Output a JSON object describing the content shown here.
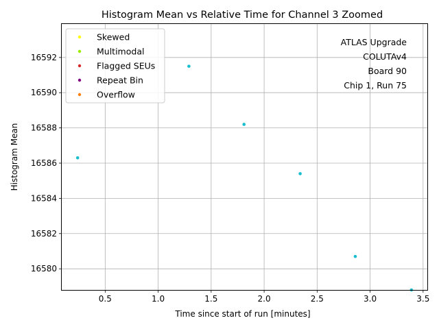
{
  "chart_data": {
    "type": "scatter",
    "title": "Histogram Mean vs Relative Time for Channel 3 Zoomed",
    "xlabel": "Time since start of run [minutes]",
    "ylabel": "Histogram Mean",
    "xlim": [
      0.09,
      3.54
    ],
    "ylim": [
      16578.8,
      16593.9
    ],
    "xticks": [
      0.5,
      1.0,
      1.5,
      2.0,
      2.5,
      3.0,
      3.5
    ],
    "xtick_labels": [
      "0.5",
      "1.0",
      "1.5",
      "2.0",
      "2.5",
      "3.0",
      "3.5"
    ],
    "yticks": [
      16580,
      16582,
      16584,
      16586,
      16588,
      16590,
      16592
    ],
    "ytick_labels": [
      "16580",
      "16582",
      "16584",
      "16586",
      "16588",
      "16590",
      "16592"
    ],
    "grid": true,
    "legend_position": "top-left",
    "legend": [
      {
        "label": "Skewed",
        "color": "#ffff00"
      },
      {
        "label": "Multimodal",
        "color": "#99ee00"
      },
      {
        "label": "Flagged SEUs",
        "color": "#d62728"
      },
      {
        "label": "Repeat Bin",
        "color": "#800080"
      },
      {
        "label": "Overflow",
        "color": "#ff7f0e"
      }
    ],
    "point_color": "#17becf",
    "points": [
      {
        "x": 0.24,
        "y": 16586.3
      },
      {
        "x": 1.29,
        "y": 16591.5
      },
      {
        "x": 1.81,
        "y": 16588.2
      },
      {
        "x": 2.34,
        "y": 16585.4
      },
      {
        "x": 2.86,
        "y": 16580.7
      },
      {
        "x": 3.39,
        "y": 16578.8
      }
    ],
    "annotation": [
      "ATLAS Upgrade",
      "COLUTAv4",
      "Board 90",
      "Chip 1, Run 75"
    ]
  }
}
